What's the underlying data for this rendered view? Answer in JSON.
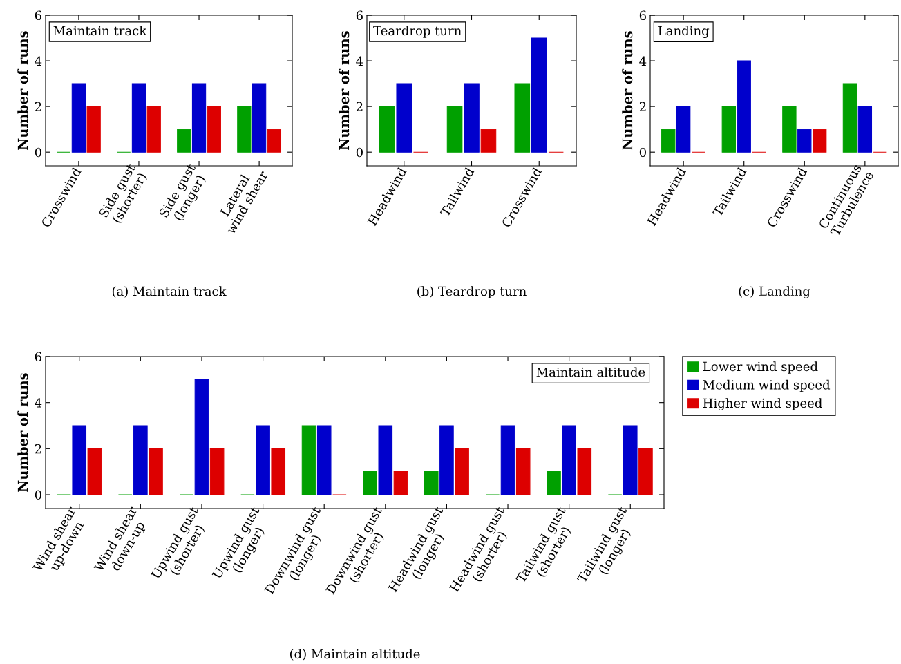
{
  "chart_data": [
    {
      "type": "bar",
      "title": "(a) Maintain track",
      "annotations": [
        "Maintain track"
      ],
      "ylabel": "Number of runs",
      "categories": [
        "Crosswind",
        "Side gust\n(shorter)",
        "Side gust\n(longer)",
        "Lateral\nwind shear"
      ],
      "ylim": [
        -0.6,
        6
      ],
      "yticks": [
        0,
        2,
        4,
        6
      ],
      "series": [
        {
          "color": "#00a000",
          "values": [
            0,
            0,
            1,
            2
          ]
        },
        {
          "color": "#0000cc",
          "values": [
            3,
            3,
            3,
            3
          ]
        },
        {
          "color": "#dd0000",
          "values": [
            2,
            2,
            2,
            1
          ]
        }
      ]
    },
    {
      "type": "bar",
      "title": "(b) Teardrop turn",
      "annotations": [
        "Teardrop turn"
      ],
      "ylabel": "Number of runs",
      "categories": [
        "Headwind",
        "Tailwind",
        "Crosswind"
      ],
      "ylim": [
        -0.6,
        6
      ],
      "yticks": [
        0,
        2,
        4,
        6
      ],
      "series": [
        {
          "color": "#00a000",
          "values": [
            2,
            2,
            3
          ]
        },
        {
          "color": "#0000cc",
          "values": [
            3,
            3,
            5
          ]
        },
        {
          "color": "#dd0000",
          "values": [
            0,
            1,
            0
          ]
        }
      ]
    },
    {
      "type": "bar",
      "title": "(c) Landing",
      "annotations": [
        "Landing"
      ],
      "ylabel": "Number of runs",
      "categories": [
        "Headwind",
        "Tailwind",
        "Crosswind",
        "Continuous\nTurbulence"
      ],
      "ylim": [
        -0.6,
        6
      ],
      "yticks": [
        0,
        2,
        4,
        6
      ],
      "series": [
        {
          "color": "#00a000",
          "values": [
            1,
            2,
            2,
            3
          ]
        },
        {
          "color": "#0000cc",
          "values": [
            2,
            4,
            1,
            2
          ]
        },
        {
          "color": "#dd0000",
          "values": [
            0,
            0,
            1,
            0
          ]
        }
      ]
    },
    {
      "type": "bar",
      "title": "(d) Maintain altitude",
      "annotations": [
        "Maintain altitude"
      ],
      "ylabel": "Number of runs",
      "legend": "right",
      "categories": [
        "Wind shear\nup-down",
        "Wind shear\ndown-up",
        "Upwind gust\n(shorter)",
        "Upwind gust\n(longer)",
        "Downwind gust\n(longer)",
        "Downwind gust\n(shorter)",
        "Headwind gust\n(longer)",
        "Headwind gust\n(shorter)",
        "Tailwind gust\n(shorter)",
        "Tailwind gust\n(longer)"
      ],
      "ylim": [
        -0.6,
        6
      ],
      "yticks": [
        0,
        2,
        4,
        6
      ],
      "series": [
        {
          "name": "Lower wind speed",
          "color": "#00a000",
          "values": [
            0,
            0,
            0,
            0,
            3,
            1,
            1,
            0,
            1,
            0
          ]
        },
        {
          "name": "Medium wind speed",
          "color": "#0000cc",
          "values": [
            3,
            3,
            5,
            3,
            3,
            3,
            3,
            3,
            3,
            3
          ]
        },
        {
          "name": "Higher wind speed",
          "color": "#dd0000",
          "values": [
            2,
            2,
            2,
            2,
            0,
            1,
            2,
            2,
            2,
            2
          ]
        }
      ]
    }
  ]
}
